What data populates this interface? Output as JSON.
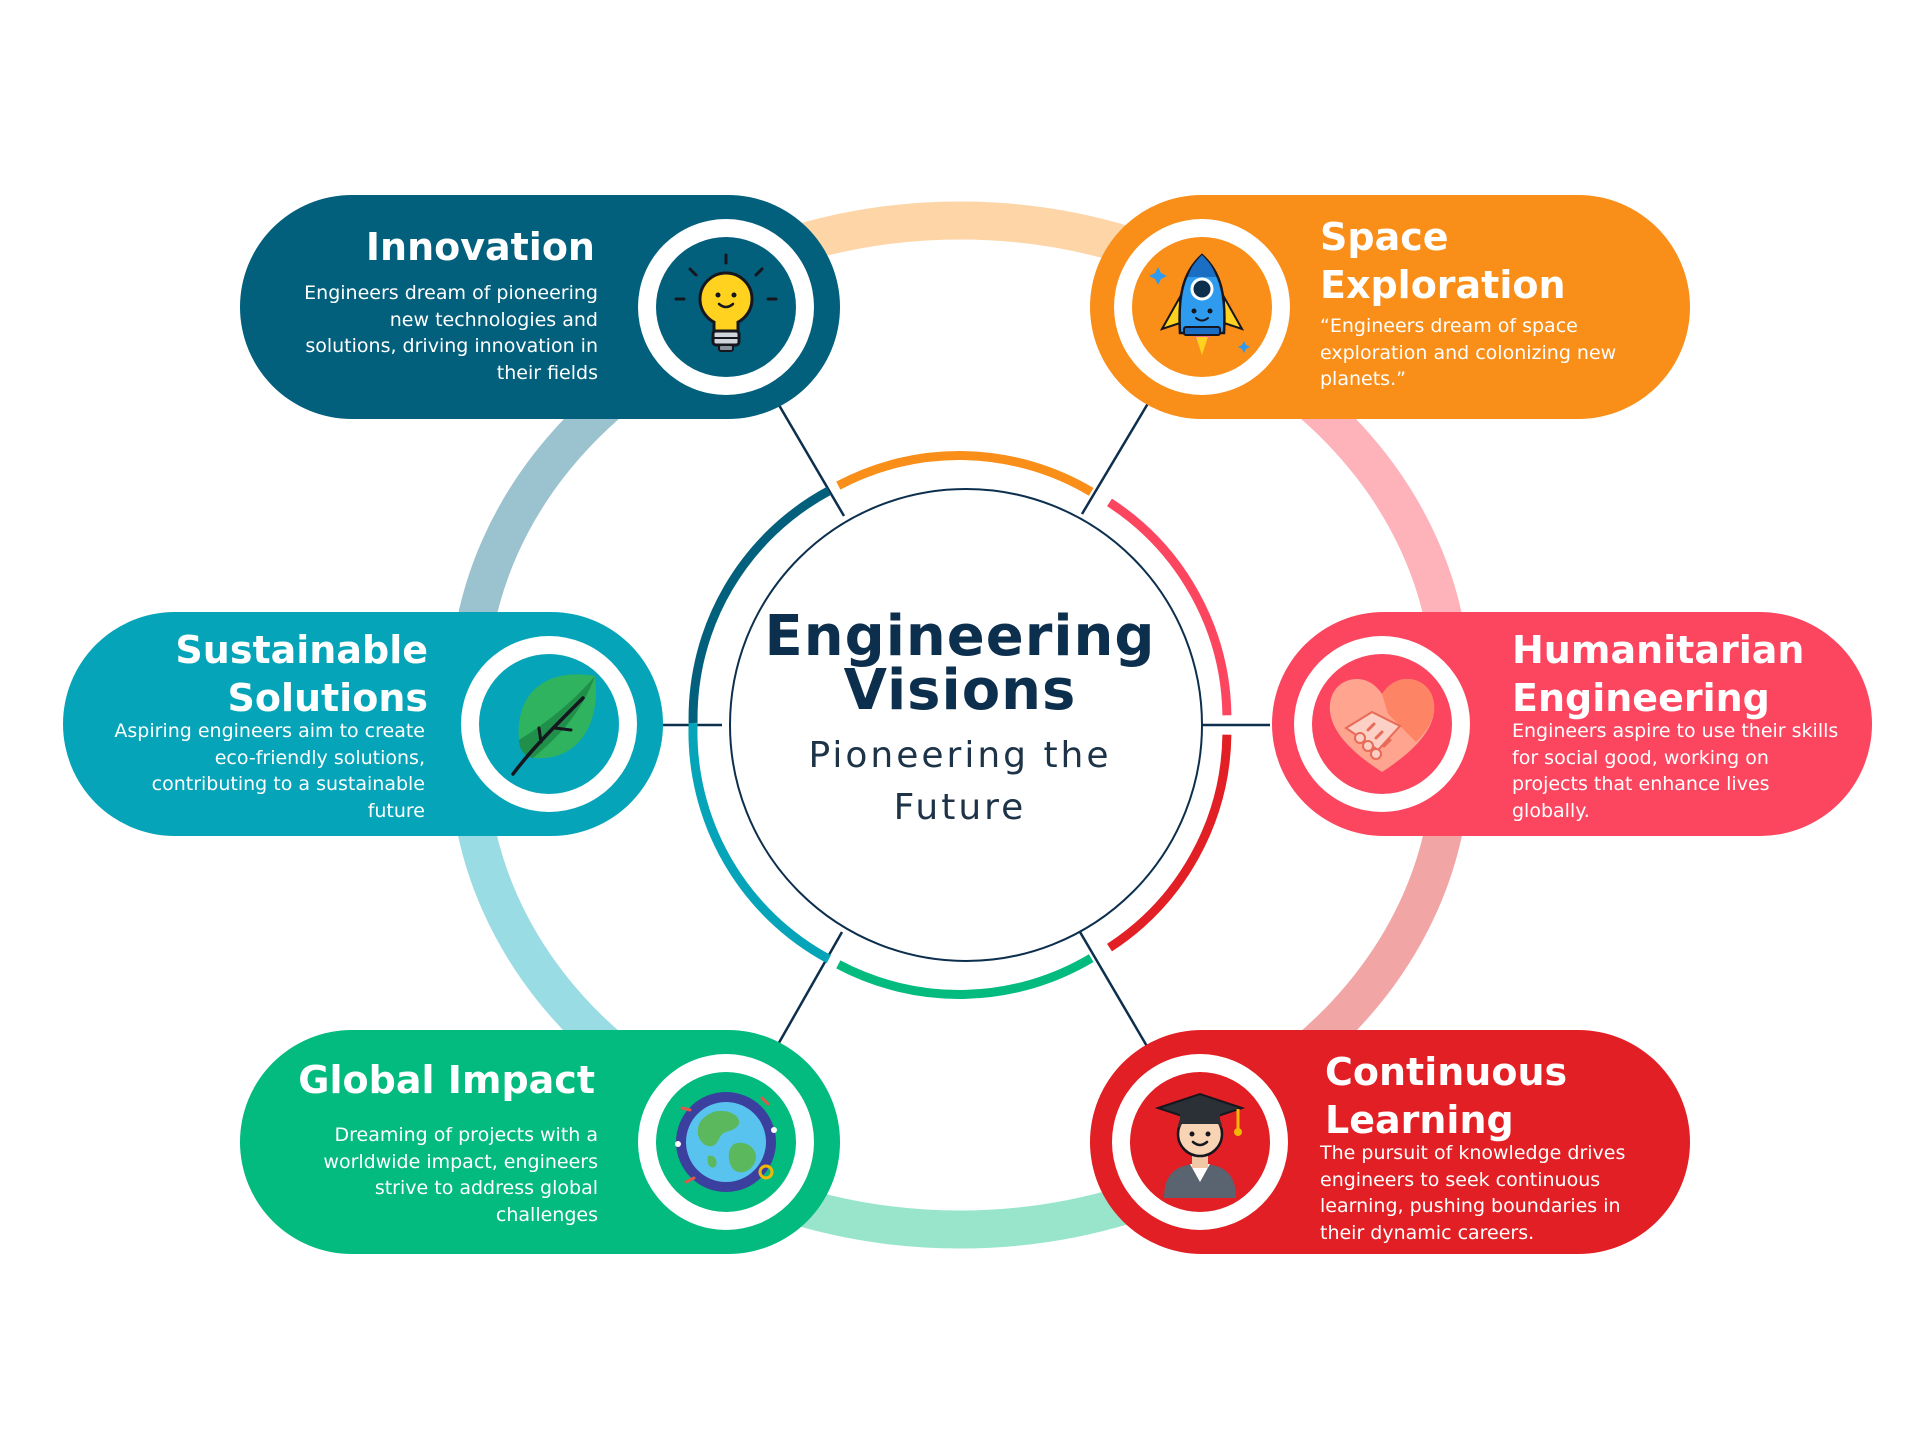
{
  "center": {
    "title_line1": "Engineering",
    "title_line2": "Visions",
    "subtitle_line1": "Pioneering the",
    "subtitle_line2": "Future"
  },
  "items": [
    {
      "title": "Innovation",
      "description": "Engineers dream of pioneering new technologies and solutions, driving innovation in their fields",
      "color": "#03607d",
      "icon": "lightbulb-icon"
    },
    {
      "title": "Space Exploration",
      "description": "“Engineers dream of space exploration and colonizing new planets.”",
      "color": "#f98e19",
      "icon": "rocket-icon"
    },
    {
      "title": "Sustainable Solutions",
      "description": "Aspiring engineers aim to create eco-friendly solutions, contributing to a sustainable future",
      "color": "#05a4b9",
      "icon": "leaf-icon"
    },
    {
      "title": "Humanitarian Engineering",
      "description": "Engineers aspire to use their skills for social good, working on projects that enhance lives globally.",
      "color": "#fc4660",
      "icon": "heart-handshake-icon"
    },
    {
      "title": "Global Impact",
      "description": "Dreaming of projects with a worldwide impact, engineers strive to address global challenges",
      "color": "#03bb7e",
      "icon": "globe-icon"
    },
    {
      "title": "Continuous Learning",
      "description": "The pursuit of knowledge drives engineers to seek continuous learning, pushing boundaries in their dynamic careers.",
      "color": "#e21f24",
      "icon": "graduate-icon"
    }
  ]
}
